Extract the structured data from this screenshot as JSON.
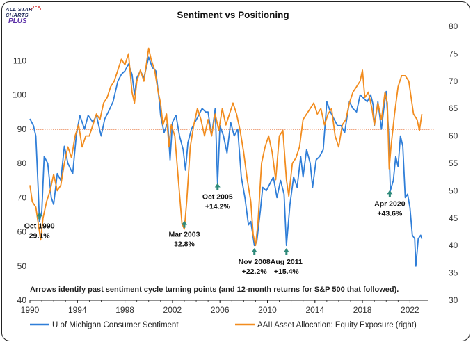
{
  "brand": {
    "line1": "ALL STAR",
    "line2": "CHARTS",
    "line3": "PLUS"
  },
  "chart_data": {
    "type": "line",
    "title": "Sentiment vs Positioning",
    "xlim": [
      1990,
      2023.5
    ],
    "x_ticks": [
      "1990",
      "1994",
      "1998",
      "2002",
      "2006",
      "2010",
      "2014",
      "2018",
      "2022"
    ],
    "y_left": {
      "lim": [
        40,
        120
      ],
      "ticks": [
        "40",
        "50",
        "60",
        "70",
        "80",
        "90",
        "100",
        "110"
      ]
    },
    "y_right": {
      "lim": [
        30,
        80
      ],
      "ticks": [
        "30",
        "35",
        "40",
        "45",
        "50",
        "55",
        "60",
        "65",
        "70",
        "75",
        "80"
      ]
    },
    "reference_line": {
      "axis": "right",
      "value": 61.2,
      "color": "#e8733a",
      "style": "dotted"
    },
    "series": [
      {
        "name": "U of Michigan Consumer Sentiment",
        "axis": "left",
        "color": "#2f7ed8",
        "points": [
          [
            1990.0,
            93
          ],
          [
            1990.3,
            91
          ],
          [
            1990.5,
            88
          ],
          [
            1990.7,
            72
          ],
          [
            1990.8,
            63
          ],
          [
            1991.0,
            66
          ],
          [
            1991.2,
            82
          ],
          [
            1991.5,
            80
          ],
          [
            1991.8,
            70
          ],
          [
            1992.0,
            68
          ],
          [
            1992.3,
            77
          ],
          [
            1992.6,
            75
          ],
          [
            1992.9,
            85
          ],
          [
            1993.2,
            80
          ],
          [
            1993.6,
            77
          ],
          [
            1993.9,
            88
          ],
          [
            1994.2,
            94
          ],
          [
            1994.6,
            90
          ],
          [
            1994.9,
            94
          ],
          [
            1995.3,
            92
          ],
          [
            1995.6,
            94
          ],
          [
            1996.0,
            88
          ],
          [
            1996.3,
            93
          ],
          [
            1996.6,
            95
          ],
          [
            1997.0,
            98
          ],
          [
            1997.4,
            104
          ],
          [
            1997.7,
            106
          ],
          [
            1998.0,
            107
          ],
          [
            1998.3,
            109
          ],
          [
            1998.6,
            106
          ],
          [
            1998.8,
            100
          ],
          [
            1999.0,
            105
          ],
          [
            1999.3,
            107
          ],
          [
            1999.6,
            105
          ],
          [
            2000.0,
            111
          ],
          [
            2000.3,
            108
          ],
          [
            2000.6,
            107
          ],
          [
            2000.9,
            98
          ],
          [
            2001.0,
            94
          ],
          [
            2001.3,
            89
          ],
          [
            2001.6,
            92
          ],
          [
            2001.8,
            81
          ],
          [
            2002.0,
            92
          ],
          [
            2002.3,
            94
          ],
          [
            2002.6,
            88
          ],
          [
            2002.9,
            84
          ],
          [
            2003.1,
            78
          ],
          [
            2003.3,
            86
          ],
          [
            2003.6,
            90
          ],
          [
            2003.9,
            92
          ],
          [
            2004.2,
            94
          ],
          [
            2004.5,
            96
          ],
          [
            2004.8,
            95
          ],
          [
            2005.0,
            95
          ],
          [
            2005.3,
            88
          ],
          [
            2005.6,
            96
          ],
          [
            2005.8,
            74
          ],
          [
            2006.0,
            91
          ],
          [
            2006.3,
            88
          ],
          [
            2006.6,
            83
          ],
          [
            2006.9,
            92
          ],
          [
            2007.2,
            88
          ],
          [
            2007.5,
            90
          ],
          [
            2007.8,
            76
          ],
          [
            2008.1,
            70
          ],
          [
            2008.4,
            62
          ],
          [
            2008.6,
            63
          ],
          [
            2008.9,
            56
          ],
          [
            2009.1,
            57
          ],
          [
            2009.4,
            66
          ],
          [
            2009.6,
            73
          ],
          [
            2009.9,
            72
          ],
          [
            2010.2,
            74
          ],
          [
            2010.5,
            76
          ],
          [
            2010.8,
            70
          ],
          [
            2011.1,
            75
          ],
          [
            2011.4,
            71
          ],
          [
            2011.6,
            56
          ],
          [
            2011.9,
            68
          ],
          [
            2012.2,
            76
          ],
          [
            2012.5,
            73
          ],
          [
            2012.8,
            82
          ],
          [
            2013.0,
            76
          ],
          [
            2013.3,
            84
          ],
          [
            2013.6,
            80
          ],
          [
            2013.8,
            73
          ],
          [
            2014.1,
            81
          ],
          [
            2014.4,
            82
          ],
          [
            2014.7,
            84
          ],
          [
            2015.0,
            98
          ],
          [
            2015.3,
            95
          ],
          [
            2015.6,
            93
          ],
          [
            2015.9,
            91
          ],
          [
            2016.2,
            91
          ],
          [
            2016.5,
            89
          ],
          [
            2016.9,
            98
          ],
          [
            2017.2,
            96
          ],
          [
            2017.5,
            95
          ],
          [
            2017.8,
            100
          ],
          [
            2018.1,
            99
          ],
          [
            2018.4,
            98
          ],
          [
            2018.7,
            100
          ],
          [
            2018.9,
            97
          ],
          [
            2019.0,
            91
          ],
          [
            2019.3,
            98
          ],
          [
            2019.6,
            90
          ],
          [
            2019.8,
            96
          ],
          [
            2020.0,
            101
          ],
          [
            2020.2,
            89
          ],
          [
            2020.35,
            72
          ],
          [
            2020.6,
            75
          ],
          [
            2020.8,
            82
          ],
          [
            2021.0,
            79
          ],
          [
            2021.2,
            88
          ],
          [
            2021.4,
            85
          ],
          [
            2021.6,
            70
          ],
          [
            2021.8,
            71
          ],
          [
            2022.0,
            67
          ],
          [
            2022.2,
            59
          ],
          [
            2022.4,
            58
          ],
          [
            2022.5,
            50
          ],
          [
            2022.7,
            58
          ],
          [
            2022.9,
            59
          ],
          [
            2023.0,
            58
          ]
        ]
      },
      {
        "name": "AAII Asset Allocation: Equity Exposure (right)",
        "axis": "right",
        "color": "#f28c1e",
        "points": [
          [
            1990.0,
            51
          ],
          [
            1990.2,
            48
          ],
          [
            1990.5,
            47
          ],
          [
            1990.7,
            44
          ],
          [
            1990.9,
            41
          ],
          [
            1991.1,
            45
          ],
          [
            1991.4,
            48
          ],
          [
            1991.7,
            50
          ],
          [
            1992.0,
            53
          ],
          [
            1992.3,
            50
          ],
          [
            1992.6,
            51
          ],
          [
            1992.9,
            55
          ],
          [
            1993.2,
            58
          ],
          [
            1993.5,
            56
          ],
          [
            1993.8,
            60
          ],
          [
            1994.1,
            62
          ],
          [
            1994.4,
            58
          ],
          [
            1994.7,
            60
          ],
          [
            1995.0,
            60
          ],
          [
            1995.3,
            62
          ],
          [
            1995.6,
            64
          ],
          [
            1995.9,
            63
          ],
          [
            1996.2,
            66
          ],
          [
            1996.5,
            67
          ],
          [
            1996.8,
            69
          ],
          [
            1997.1,
            70
          ],
          [
            1997.4,
            72
          ],
          [
            1997.7,
            74
          ],
          [
            1998.0,
            73
          ],
          [
            1998.3,
            75
          ],
          [
            1998.6,
            68
          ],
          [
            1998.8,
            66
          ],
          [
            1999.0,
            70
          ],
          [
            1999.3,
            72
          ],
          [
            1999.6,
            70
          ],
          [
            2000.0,
            76
          ],
          [
            2000.2,
            74
          ],
          [
            2000.5,
            72
          ],
          [
            2000.8,
            68
          ],
          [
            2001.0,
            66
          ],
          [
            2001.2,
            62
          ],
          [
            2001.5,
            64
          ],
          [
            2001.7,
            58
          ],
          [
            2001.9,
            62
          ],
          [
            2002.2,
            60
          ],
          [
            2002.5,
            52
          ],
          [
            2002.8,
            44
          ],
          [
            2003.0,
            43
          ],
          [
            2003.2,
            48
          ],
          [
            2003.5,
            58
          ],
          [
            2003.8,
            62
          ],
          [
            2004.1,
            65
          ],
          [
            2004.4,
            63
          ],
          [
            2004.7,
            60
          ],
          [
            2005.0,
            63
          ],
          [
            2005.3,
            60
          ],
          [
            2005.6,
            64
          ],
          [
            2005.9,
            61
          ],
          [
            2006.2,
            65
          ],
          [
            2006.5,
            62
          ],
          [
            2006.8,
            64
          ],
          [
            2007.1,
            66
          ],
          [
            2007.4,
            64
          ],
          [
            2007.7,
            61
          ],
          [
            2008.0,
            57
          ],
          [
            2008.3,
            52
          ],
          [
            2008.6,
            48
          ],
          [
            2008.8,
            42
          ],
          [
            2009.0,
            40
          ],
          [
            2009.2,
            44
          ],
          [
            2009.5,
            55
          ],
          [
            2009.8,
            58
          ],
          [
            2010.1,
            60
          ],
          [
            2010.4,
            57
          ],
          [
            2010.7,
            52
          ],
          [
            2011.0,
            60
          ],
          [
            2011.3,
            61
          ],
          [
            2011.6,
            52
          ],
          [
            2011.8,
            49
          ],
          [
            2012.1,
            55
          ],
          [
            2012.4,
            56
          ],
          [
            2012.7,
            58
          ],
          [
            2013.0,
            63
          ],
          [
            2013.3,
            64
          ],
          [
            2013.6,
            65
          ],
          [
            2013.9,
            66
          ],
          [
            2014.2,
            64
          ],
          [
            2014.5,
            65
          ],
          [
            2014.8,
            62
          ],
          [
            2015.1,
            64
          ],
          [
            2015.4,
            65
          ],
          [
            2015.7,
            60
          ],
          [
            2016.0,
            58
          ],
          [
            2016.3,
            62
          ],
          [
            2016.6,
            63
          ],
          [
            2016.9,
            66
          ],
          [
            2017.2,
            68
          ],
          [
            2017.5,
            69
          ],
          [
            2017.8,
            70
          ],
          [
            2018.0,
            72
          ],
          [
            2018.2,
            67
          ],
          [
            2018.5,
            68
          ],
          [
            2018.8,
            65
          ],
          [
            2019.0,
            62
          ],
          [
            2019.3,
            66
          ],
          [
            2019.6,
            63
          ],
          [
            2019.9,
            68
          ],
          [
            2020.1,
            66
          ],
          [
            2020.25,
            54
          ],
          [
            2020.4,
            58
          ],
          [
            2020.7,
            64
          ],
          [
            2021.0,
            69
          ],
          [
            2021.3,
            71
          ],
          [
            2021.6,
            71
          ],
          [
            2021.9,
            70
          ],
          [
            2022.1,
            67
          ],
          [
            2022.3,
            64
          ],
          [
            2022.6,
            63
          ],
          [
            2022.8,
            61
          ],
          [
            2023.0,
            64
          ]
        ]
      }
    ],
    "annotations": [
      {
        "x": 1990.8,
        "y": 64.5,
        "lines": [
          "Oct 1990",
          "29.1%"
        ]
      },
      {
        "x": 2003.0,
        "y": 62.0,
        "lines": [
          "Mar 2003",
          "32.8%"
        ]
      },
      {
        "x": 2005.8,
        "y": 73.0,
        "lines": [
          "Oct 2005",
          "+14.2%"
        ]
      },
      {
        "x": 2008.9,
        "y": 54.0,
        "lines": [
          "Nov 2008",
          "+22.2%"
        ]
      },
      {
        "x": 2011.6,
        "y": 54.0,
        "lines": [
          "Aug 2011",
          "+15.4%"
        ]
      },
      {
        "x": 2020.3,
        "y": 71.0,
        "lines": [
          "Apr 2020",
          "+43.6%"
        ]
      }
    ],
    "footnote": "Arrows identify past sentiment cycle turning points (and 12-month returns for S&P 500 that followed).",
    "arrow_color": "#2e8a7a"
  }
}
